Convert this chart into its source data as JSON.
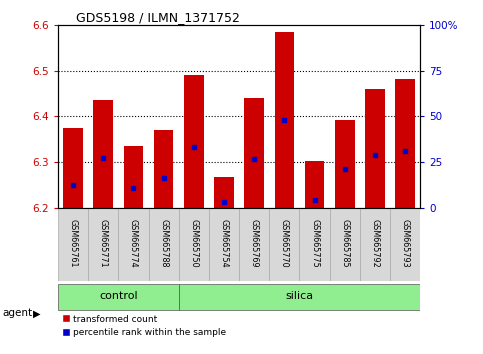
{
  "title": "GDS5198 / ILMN_1371752",
  "samples": [
    "GSM665761",
    "GSM665771",
    "GSM665774",
    "GSM665788",
    "GSM665750",
    "GSM665754",
    "GSM665769",
    "GSM665770",
    "GSM665775",
    "GSM665785",
    "GSM665792",
    "GSM665793"
  ],
  "groups": [
    "control",
    "control",
    "control",
    "control",
    "silica",
    "silica",
    "silica",
    "silica",
    "silica",
    "silica",
    "silica",
    "silica"
  ],
  "bar_tops": [
    6.375,
    6.435,
    6.335,
    6.37,
    6.49,
    6.268,
    6.44,
    6.585,
    6.302,
    6.392,
    6.46,
    6.482
  ],
  "percentile_vals": [
    6.25,
    6.31,
    6.245,
    6.265,
    6.333,
    6.213,
    6.308,
    6.393,
    6.218,
    6.285,
    6.315,
    6.325
  ],
  "ylim_left": [
    6.2,
    6.6
  ],
  "ylim_right": [
    0,
    100
  ],
  "ytick_labels_left": [
    "6.2",
    "6.3",
    "6.4",
    "6.5",
    "6.6"
  ],
  "yticks_left": [
    6.2,
    6.3,
    6.4,
    6.5,
    6.6
  ],
  "yticks_right": [
    0,
    25,
    50,
    75,
    100
  ],
  "ytick_labels_right": [
    "0",
    "25",
    "50",
    "75",
    "100%"
  ],
  "bar_color": "#cc0000",
  "percentile_color": "#0000cc",
  "group_color": "#90ee90",
  "group_label_control": "control",
  "group_label_silica": "silica",
  "legend_bar": "transformed count",
  "legend_pct": "percentile rank within the sample",
  "agent_label": "agent",
  "bar_bottom": 6.2,
  "bar_width": 0.65
}
